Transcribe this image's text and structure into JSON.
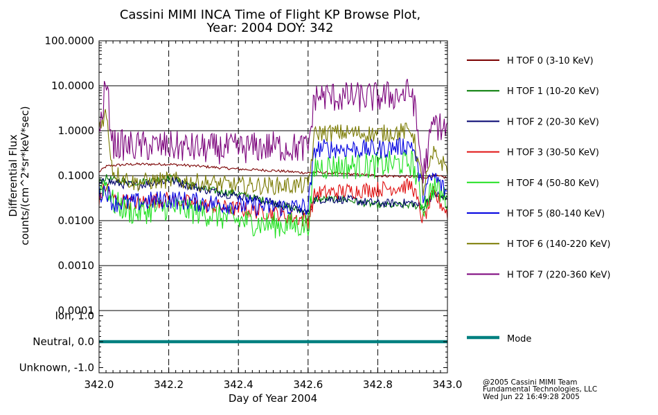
{
  "title_line1": "Cassini MIMI INCA Time of Flight KP Browse Plot,",
  "title_line2": "Year: 2004 DOY: 342",
  "credits": [
    "@2005 Cassini MIMI Team",
    "Fundamental Technologies, LLC",
    "Wed Jun 22 16:49:28 2005"
  ],
  "chart_data": [
    {
      "type": "line",
      "xlabel": "",
      "ylabel_line1": "Differential Flux",
      "ylabel_line2": "counts/(cm^2*sr*keV*sec)",
      "yscale": "log",
      "xlim": [
        342.0,
        343.0
      ],
      "ylim": [
        0.0001,
        100.0
      ],
      "yticks": [
        100.0,
        10.0,
        1.0,
        0.1,
        0.01,
        0.001,
        0.0001
      ],
      "ytick_labels": [
        "100.0000",
        "10.0000",
        "1.0000",
        "0.1000",
        "0.0100",
        "0.0010",
        "0.0001"
      ],
      "grid": true,
      "legend_position": "right",
      "series": [
        {
          "name": "H TOF 0 (3-10 KeV)",
          "color": "#7a0000",
          "noise": 0.03,
          "x": [
            342.0,
            342.02,
            342.04,
            342.1,
            342.2,
            342.3,
            342.4,
            342.5,
            342.6,
            342.62,
            342.7,
            342.8,
            342.9,
            342.93,
            342.96,
            343.0
          ],
          "y": [
            0.12,
            0.16,
            0.17,
            0.18,
            0.18,
            0.16,
            0.14,
            0.13,
            0.115,
            0.12,
            0.11,
            0.1,
            0.095,
            0.09,
            0.1,
            0.09
          ]
        },
        {
          "name": "H TOF 1 (10-20 KeV)",
          "color": "#007a00",
          "noise": 0.08,
          "x": [
            342.0,
            342.02,
            342.04,
            342.1,
            342.2,
            342.3,
            342.4,
            342.5,
            342.6,
            342.62,
            342.7,
            342.8,
            342.9,
            342.93,
            342.96,
            343.0
          ],
          "y": [
            0.07,
            0.09,
            0.08,
            0.07,
            0.09,
            0.05,
            0.04,
            0.025,
            0.015,
            0.03,
            0.03,
            0.022,
            0.022,
            0.02,
            0.04,
            0.03
          ]
        },
        {
          "name": "H TOF 2 (20-30 KeV)",
          "color": "#00006e",
          "noise": 0.1,
          "x": [
            342.0,
            342.02,
            342.04,
            342.1,
            342.2,
            342.3,
            342.4,
            342.5,
            342.6,
            342.62,
            342.7,
            342.8,
            342.9,
            342.93,
            342.96,
            343.0
          ],
          "y": [
            0.06,
            0.08,
            0.07,
            0.06,
            0.08,
            0.05,
            0.035,
            0.025,
            0.015,
            0.03,
            0.03,
            0.024,
            0.025,
            0.02,
            0.04,
            0.03
          ]
        },
        {
          "name": "H TOF 3 (30-50 KeV)",
          "color": "#e01010",
          "noise": 0.18,
          "x": [
            342.0,
            342.02,
            342.04,
            342.1,
            342.2,
            342.3,
            342.4,
            342.5,
            342.6,
            342.62,
            342.7,
            342.8,
            342.9,
            342.93,
            342.96,
            343.0
          ],
          "y": [
            0.03,
            0.06,
            0.03,
            0.025,
            0.03,
            0.022,
            0.018,
            0.015,
            0.01,
            0.04,
            0.045,
            0.05,
            0.06,
            0.01,
            0.04,
            0.015
          ]
        },
        {
          "name": "H TOF 4 (50-80 KeV)",
          "color": "#20e020",
          "noise": 0.3,
          "x": [
            342.0,
            342.02,
            342.04,
            342.1,
            342.2,
            342.3,
            342.4,
            342.5,
            342.6,
            342.62,
            342.7,
            342.8,
            342.9,
            342.93,
            342.96,
            343.0
          ],
          "y": [
            0.05,
            0.07,
            0.025,
            0.015,
            0.02,
            0.015,
            0.01,
            0.008,
            0.008,
            0.16,
            0.16,
            0.17,
            0.2,
            0.02,
            0.06,
            0.03
          ]
        },
        {
          "name": "H TOF 5 (80-140 KeV)",
          "color": "#0000e0",
          "noise": 0.22,
          "x": [
            342.0,
            342.02,
            342.04,
            342.1,
            342.2,
            342.3,
            342.4,
            342.5,
            342.6,
            342.62,
            342.7,
            342.8,
            342.9,
            342.93,
            342.96,
            343.0
          ],
          "y": [
            0.04,
            0.05,
            0.025,
            0.025,
            0.03,
            0.025,
            0.022,
            0.02,
            0.02,
            0.4,
            0.4,
            0.38,
            0.5,
            0.04,
            0.1,
            0.04
          ]
        },
        {
          "name": "H TOF 6 (140-220 KeV)",
          "color": "#7a7a00",
          "noise": 0.2,
          "x": [
            342.0,
            342.02,
            342.04,
            342.1,
            342.2,
            342.3,
            342.4,
            342.5,
            342.6,
            342.62,
            342.7,
            342.8,
            342.9,
            342.93,
            342.96,
            343.0
          ],
          "y": [
            1.3,
            2.5,
            0.12,
            0.07,
            0.08,
            0.07,
            0.06,
            0.06,
            0.06,
            0.9,
            0.9,
            0.85,
            1.0,
            0.05,
            0.3,
            0.15
          ]
        },
        {
          "name": "H TOF 7 (220-360 KeV)",
          "color": "#7a007a",
          "noise": 0.35,
          "x": [
            342.0,
            342.02,
            342.04,
            342.1,
            342.2,
            342.3,
            342.4,
            342.5,
            342.6,
            342.62,
            342.7,
            342.8,
            342.9,
            342.93,
            342.96,
            343.0
          ],
          "y": [
            0.7,
            12.0,
            0.5,
            0.45,
            0.45,
            0.4,
            0.4,
            0.45,
            0.4,
            6.0,
            5.5,
            5.5,
            7.0,
            0.1,
            1.5,
            1.0
          ]
        }
      ]
    },
    {
      "type": "line",
      "xlabel": "Day of Year 2004",
      "ylim": [
        -1.2,
        1.2
      ],
      "yticks": [
        1.0,
        0.0,
        -1.0
      ],
      "ytick_labels": [
        "Ion, 1.0",
        "Neutral, 0.0",
        "Unknown, -1.0"
      ],
      "xticks": [
        342.0,
        342.2,
        342.4,
        342.6,
        342.8,
        343.0
      ],
      "xtick_labels": [
        "342.0",
        "342.2",
        "342.4",
        "342.6",
        "342.8",
        "343.0"
      ],
      "legend_position": "right",
      "series": [
        {
          "name": "Mode",
          "color": "#008080",
          "x": [
            342.0,
            343.0
          ],
          "y": [
            0.0,
            0.0
          ]
        }
      ]
    }
  ]
}
